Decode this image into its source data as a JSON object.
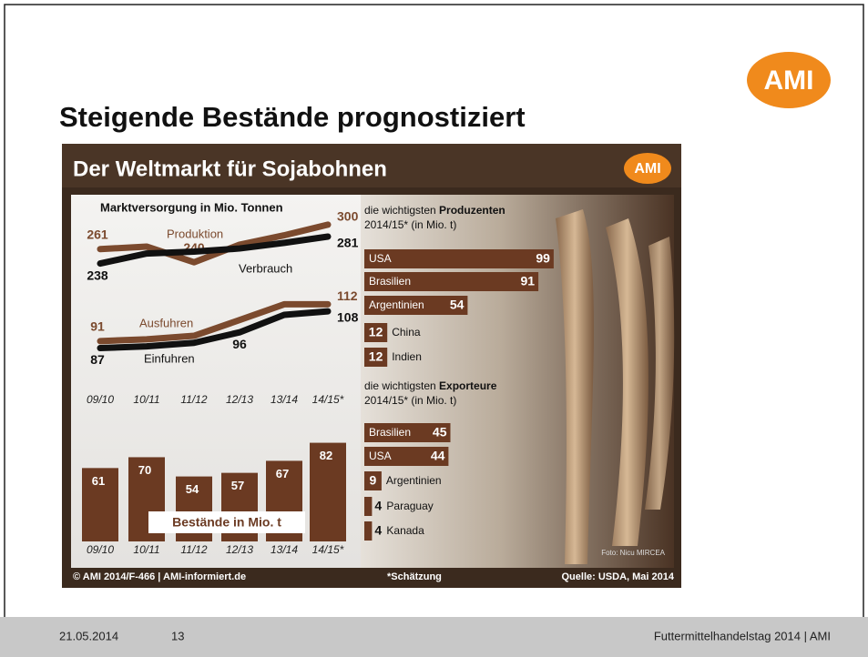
{
  "slide": {
    "title": "Steigende Bestände prognostiziert",
    "logo": "AMI",
    "date": "21.05.2014",
    "page": "13",
    "footer": "Futtermittelhandelstag 2014 | AMI"
  },
  "infographic": {
    "title": "Der Weltmarkt für Sojabohnen",
    "logo": "AMI",
    "copyright": "© AMI 2014/F-466 | AMI-informiert.de",
    "note": "*Schätzung",
    "source": "Quelle: USDA, Mai 2014",
    "photo_credit": "Foto: Nicu MIRCEA"
  },
  "chart_data": [
    {
      "type": "line",
      "title": "Marktversorgung in Mio. Tonnen",
      "categories": [
        "09/10",
        "10/11",
        "11/12",
        "12/13",
        "13/14",
        "14/15*"
      ],
      "ylim": [
        220,
        310
      ],
      "y2lim": [
        80,
        120
      ],
      "series": [
        {
          "name": "Produktion",
          "color": "#7b4a2e",
          "values": [
            261,
            265,
            240,
            268,
            283,
            300
          ],
          "value_labels": [
            "261",
            null,
            "240",
            null,
            null,
            "300"
          ]
        },
        {
          "name": "Verbrauch",
          "color": "#111111",
          "values": [
            238,
            254,
            257,
            262,
            271,
            281
          ],
          "value_labels": [
            "238",
            null,
            null,
            null,
            null,
            "281"
          ]
        },
        {
          "name": "Ausfuhren",
          "color": "#7b4a2e",
          "axis": "y2",
          "values": [
            91,
            92,
            94,
            103,
            112,
            112
          ],
          "value_labels": [
            "91",
            null,
            null,
            null,
            null,
            "112"
          ]
        },
        {
          "name": "Einfuhren",
          "color": "#111111",
          "axis": "y2",
          "values": [
            87,
            88,
            90,
            96,
            106,
            108
          ],
          "value_labels": [
            "87",
            null,
            null,
            "96",
            null,
            "108"
          ]
        }
      ]
    },
    {
      "type": "bar",
      "title": "Bestände in Mio. t",
      "color": "#6b3a22",
      "categories": [
        "09/10",
        "10/11",
        "11/12",
        "12/13",
        "13/14",
        "14/15*"
      ],
      "values": [
        61,
        70,
        54,
        57,
        67,
        82
      ],
      "ylim": [
        0,
        90
      ]
    },
    {
      "type": "hbar",
      "title_pre": "die wichtigsten ",
      "title_bold": "Produzenten",
      "subtitle": "2014/15* (in Mio. t)",
      "color": "#6b3a22",
      "categories": [
        "USA",
        "Brasilien",
        "Argentinien",
        "China",
        "Indien"
      ],
      "values": [
        99,
        91,
        54,
        12,
        12
      ],
      "xlim": [
        0,
        100
      ]
    },
    {
      "type": "hbar",
      "title_pre": "die wichtigsten ",
      "title_bold": "Exporteure",
      "subtitle": "2014/15* (in Mio. t)",
      "color": "#6b3a22",
      "categories": [
        "Brasilien",
        "USA",
        "Argentinien",
        "Paraguay",
        "Kanada"
      ],
      "values": [
        45,
        44,
        9,
        4,
        4
      ],
      "xlim": [
        0,
        100
      ]
    }
  ]
}
